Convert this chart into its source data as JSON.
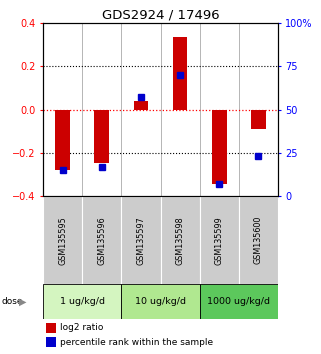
{
  "title": "GDS2924 / 17496",
  "samples": [
    "GSM135595",
    "GSM135596",
    "GSM135597",
    "GSM135598",
    "GSM135599",
    "GSM135600"
  ],
  "log2_ratio": [
    -0.28,
    -0.245,
    0.04,
    0.335,
    -0.345,
    -0.09
  ],
  "percentile_rank": [
    15,
    17,
    57,
    70,
    7,
    23
  ],
  "dose_groups": [
    {
      "label": "1 ug/kg/d",
      "start": 0,
      "end": 2,
      "color": "#d4f5c0"
    },
    {
      "label": "10 ug/kg/d",
      "start": 2,
      "end": 4,
      "color": "#b0e890"
    },
    {
      "label": "1000 ug/kg/d",
      "start": 4,
      "end": 6,
      "color": "#5cc85c"
    }
  ],
  "ylim_left": [
    -0.4,
    0.4
  ],
  "ylim_right": [
    0,
    100
  ],
  "yticks_left": [
    -0.4,
    -0.2,
    0.0,
    0.2,
    0.4
  ],
  "yticks_right": [
    0,
    25,
    50,
    75,
    100
  ],
  "bar_color_red": "#cc0000",
  "bar_color_blue": "#0000cc",
  "sample_box_color": "#cccccc",
  "legend_red": "log2 ratio",
  "legend_blue": "percentile rank within the sample"
}
